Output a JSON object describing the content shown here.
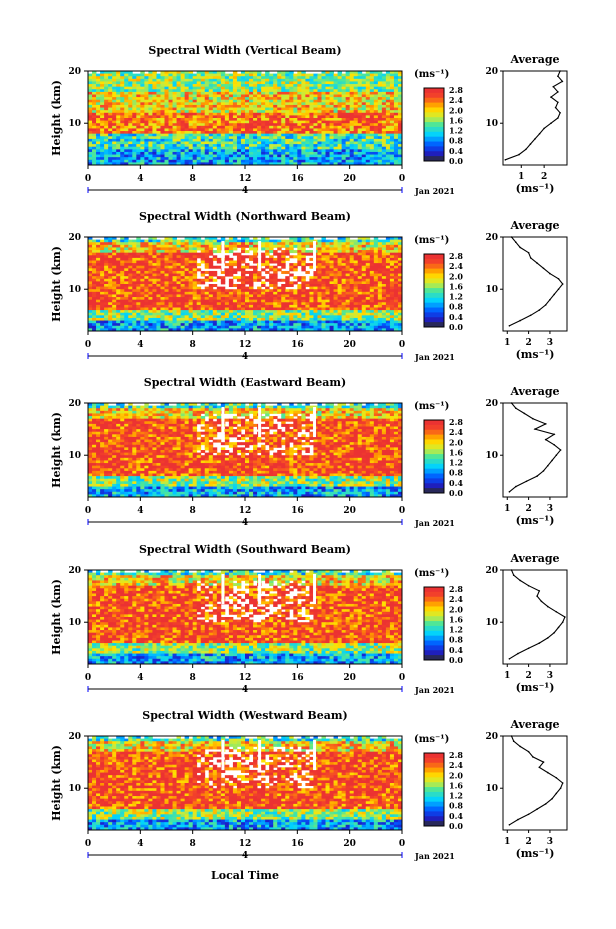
{
  "figure": {
    "x_axis_label": "Local Time",
    "date_label": "Jan 2021",
    "x_ticks": [
      "0",
      "4",
      "8",
      "12",
      "16",
      "20",
      "0"
    ],
    "day_marker": "4",
    "y_axis_label": "Height (km)",
    "y_ticks": [
      "20",
      "10"
    ],
    "colorbar_unit": "(ms⁻¹)",
    "colorbar_ticks": [
      "2.8",
      "2.4",
      "2.0",
      "1.6",
      "1.2",
      "0.8",
      "0.4",
      "0.0"
    ],
    "average_title": "Average",
    "average_unit": "(ms⁻¹)",
    "average_ticks_first": [
      "1",
      "2"
    ],
    "average_ticks": [
      "1",
      "2",
      "3"
    ]
  },
  "chart_data": [
    {
      "type": "heatmap",
      "title": "Spectral Width (Vertical Beam)",
      "xlabel": "Local Time",
      "ylabel": "Height (km)",
      "xlim": [
        0,
        24
      ],
      "ylim": [
        2,
        20
      ],
      "clim": [
        0.0,
        3.0
      ],
      "profile": {
        "xlabel": "(ms⁻¹)",
        "heights": [
          3,
          4,
          5,
          6,
          7,
          8,
          9,
          10,
          11,
          12,
          13,
          14,
          15,
          16,
          17,
          18,
          19,
          20
        ],
        "values": [
          0.3,
          0.9,
          1.2,
          1.4,
          1.6,
          1.8,
          2.0,
          2.3,
          2.6,
          2.7,
          2.5,
          2.6,
          2.3,
          2.6,
          2.4,
          2.8,
          2.6,
          2.7
        ]
      }
    },
    {
      "type": "heatmap",
      "title": "Spectral Width (Northward Beam)",
      "xlabel": "Local Time",
      "ylabel": "Height (km)",
      "xlim": [
        0,
        24
      ],
      "ylim": [
        2,
        20
      ],
      "clim": [
        0.0,
        3.0
      ],
      "profile": {
        "xlabel": "(ms⁻¹)",
        "heights": [
          3,
          4,
          5,
          6,
          7,
          8,
          9,
          10,
          11,
          12,
          13,
          14,
          15,
          16,
          17,
          18,
          19,
          20
        ],
        "values": [
          1.1,
          1.6,
          2.1,
          2.5,
          2.8,
          3.0,
          3.2,
          3.4,
          3.6,
          3.4,
          3.0,
          2.7,
          2.4,
          2.1,
          2.0,
          1.6,
          1.4,
          1.2
        ]
      }
    },
    {
      "type": "heatmap",
      "title": "Spectral Width (Eastward Beam)",
      "xlabel": "Local Time",
      "ylabel": "Height (km)",
      "xlim": [
        0,
        24
      ],
      "ylim": [
        2,
        20
      ],
      "clim": [
        0.0,
        3.0
      ],
      "profile": {
        "xlabel": "(ms⁻¹)",
        "heights": [
          3,
          4,
          5,
          6,
          7,
          8,
          9,
          10,
          11,
          12,
          13,
          14,
          15,
          16,
          17,
          18,
          19,
          20
        ],
        "values": [
          1.1,
          1.4,
          1.9,
          2.4,
          2.7,
          2.9,
          3.1,
          3.3,
          3.5,
          3.2,
          2.8,
          3.2,
          2.3,
          2.8,
          2.2,
          1.8,
          1.4,
          1.2
        ]
      }
    },
    {
      "type": "heatmap",
      "title": "Spectral Width (Southward Beam)",
      "xlabel": "Local Time",
      "ylabel": "Height (km)",
      "xlim": [
        0,
        24
      ],
      "ylim": [
        2,
        20
      ],
      "clim": [
        0.0,
        3.0
      ],
      "profile": {
        "xlabel": "(ms⁻¹)",
        "heights": [
          3,
          4,
          5,
          6,
          7,
          8,
          9,
          10,
          11,
          12,
          13,
          14,
          15,
          16,
          17,
          18,
          19,
          20
        ],
        "values": [
          1.1,
          1.5,
          2.0,
          2.5,
          2.9,
          3.2,
          3.4,
          3.6,
          3.7,
          3.3,
          2.9,
          2.6,
          2.4,
          2.5,
          2.0,
          1.6,
          1.3,
          1.2
        ]
      }
    },
    {
      "type": "heatmap",
      "title": "Spectral Width (Westward Beam)",
      "xlabel": "Local Time",
      "ylabel": "Height (km)",
      "xlim": [
        0,
        24
      ],
      "ylim": [
        2,
        20
      ],
      "clim": [
        0.0,
        3.0
      ],
      "profile": {
        "xlabel": "(ms⁻¹)",
        "heights": [
          3,
          4,
          5,
          6,
          7,
          8,
          9,
          10,
          11,
          12,
          13,
          14,
          15,
          16,
          17,
          18,
          19,
          20
        ],
        "values": [
          1.1,
          1.5,
          2.0,
          2.4,
          2.8,
          3.1,
          3.3,
          3.5,
          3.6,
          3.3,
          2.9,
          2.5,
          2.7,
          2.2,
          2.0,
          1.6,
          1.3,
          1.2
        ]
      }
    }
  ]
}
